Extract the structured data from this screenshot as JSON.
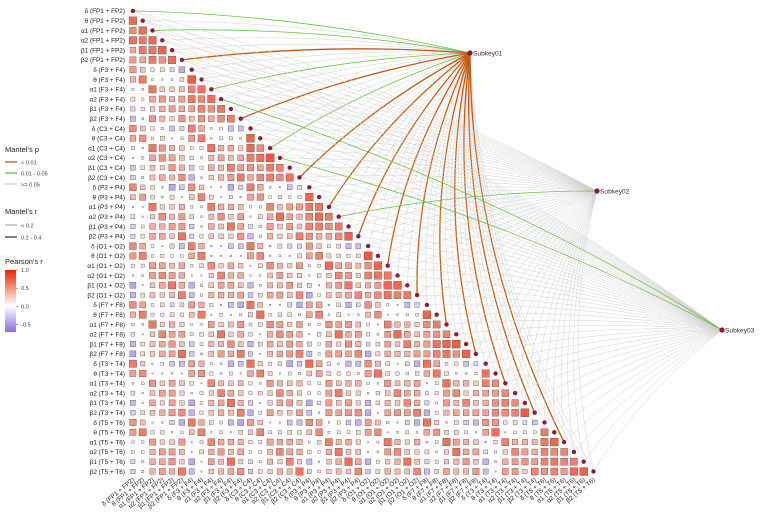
{
  "chart_data": {
    "type": "heatmap",
    "matrix_layout": "lower-triangle",
    "variables": [
      "δ (FP1 + FP2)",
      "θ (FP1 + FP2)",
      "α1 (FP1 + FP2)",
      "α2 (FP1 + FP2)",
      "β1 (FP1 + FP2)",
      "β2 (FP1 + FP2)",
      "δ (F3 + F4)",
      "θ (F3 + F4)",
      "α1 (F3 + F4)",
      "α2 (F3 + F4)",
      "β1 (F3 + F4)",
      "β2 (F3 + F4)",
      "δ (C3 + C4)",
      "θ (C3 + C4)",
      "α1 (C3 + C4)",
      "α2 (C3 + C4)",
      "β1 (C3 + C4)",
      "β2 (C3 + C4)",
      "δ (P3 + P4)",
      "θ (P3 + P4)",
      "α1 (P3 + P4)",
      "α2 (P3 + P4)",
      "β1 (P3 + P4)",
      "β2 (P3 + P4)",
      "δ (O1 + O2)",
      "θ (O1 + O2)",
      "α1 (O1 + O2)",
      "α2 (O1 + O2)",
      "β1 (O1 + O2)",
      "β2 (O1 + O2)",
      "δ (F7 + F8)",
      "θ (F7 + F8)",
      "α1 (F7 + F8)",
      "α2 (F7 + F8)",
      "β1 (F7 + F8)",
      "β2 (F7 + F8)",
      "δ (T3 + T4)",
      "θ (T3 + T4)",
      "α1 (T3 + T4)",
      "α2 (T3 + T4)",
      "β1 (T3 + T4)",
      "β2 (T3 + T4)",
      "δ (T5 + T6)",
      "θ (T5 + T6)",
      "α1 (T5 + T6)",
      "α2 (T5 + T6)",
      "β1 (T5 + T6)",
      "β2 (T5 + T6)"
    ],
    "correlation_pattern": {
      "same_region_r": 0.7,
      "same_band_r": 0.55,
      "same_type_r": 0.35,
      "delta_vs_beta_r": -0.3,
      "diagonal_r": 1.0
    },
    "subkeys": [
      {
        "label": "Subkey01",
        "strong_p_links": [
          5,
          11,
          17,
          20,
          23,
          26,
          29,
          32,
          35,
          38,
          41,
          44
        ],
        "mid_p_links": [
          0,
          2,
          8,
          14
        ]
      },
      {
        "label": "Subkey02",
        "strong_p_links": [],
        "mid_p_links": [
          21
        ]
      },
      {
        "label": "Subkey03",
        "strong_p_links": [],
        "mid_p_links": [
          9,
          15
        ]
      }
    ],
    "legend": {
      "mantel_p": {
        "title": "Mantel's p",
        "items": [
          {
            "label": "< 0.01",
            "color": "#c65a0f"
          },
          {
            "label": "0.01 - 0.05",
            "color": "#6abf45"
          },
          {
            "label": ">= 0.05",
            "color": "#cfcfcf"
          }
        ]
      },
      "mantel_r": {
        "title": "Mantel's r",
        "items": [
          {
            "label": "< 0.2",
            "width": "thin"
          },
          {
            "label": "0.2 - 0.4",
            "width": "thick"
          }
        ]
      },
      "pearson_r": {
        "title": "Pearson's r",
        "ticks": [
          1.0,
          0.5,
          0.0,
          -0.5
        ],
        "tick_labels": [
          "1.0",
          "0.5",
          "0.0",
          "-0.5"
        ],
        "range": [
          -0.7,
          1.0
        ],
        "high_color": "#ee2200",
        "mid_color": "#ffffff",
        "low_color": "#8a6be0"
      }
    }
  }
}
